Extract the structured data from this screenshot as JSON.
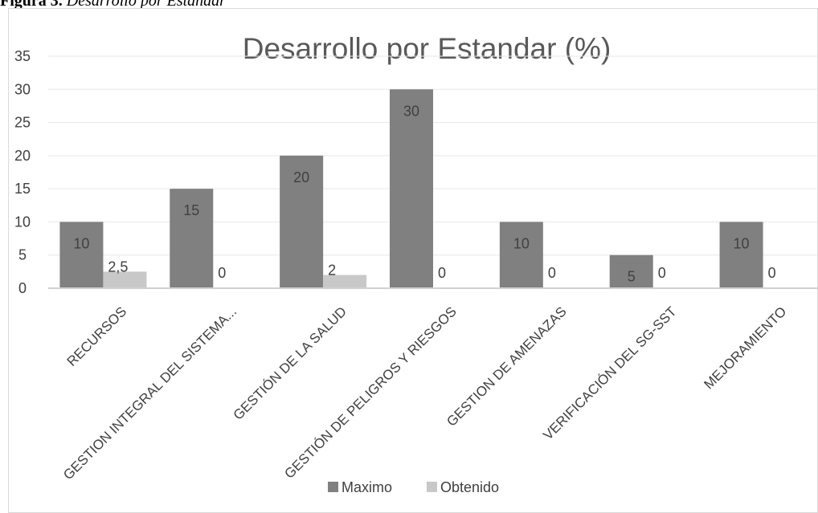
{
  "caption": {
    "label": "Figura 3.",
    "text": "Desarrollo por Estandar"
  },
  "chart_data": {
    "type": "bar",
    "title": "Desarrollo por Estandar (%)",
    "xlabel": "",
    "ylabel": "",
    "ylim": [
      0,
      35
    ],
    "yticks": [
      0,
      5,
      10,
      15,
      20,
      25,
      30,
      35
    ],
    "grid": true,
    "legend_position": "bottom",
    "categories": [
      "RECURSOS",
      "GESTION INTEGRAL DEL SISTEMA...",
      "GESTIÓN DE LA SALUD",
      "GESTIÓN DE PELIGROS Y RIESGOS",
      "GESTION DE AMENAZAS",
      "VERIFICACIÓN DEL SG-SST",
      "MEJORAMIENTO"
    ],
    "series": [
      {
        "name": "Maximo",
        "color": "#808080",
        "values": [
          10,
          15,
          20,
          30,
          10,
          5,
          10
        ],
        "labels": [
          "10",
          "15",
          "20",
          "30",
          "10",
          "5",
          "10"
        ]
      },
      {
        "name": "Obtenido",
        "color": "#c8c8c8",
        "values": [
          2.5,
          0,
          2,
          0,
          0,
          0,
          0
        ],
        "labels": [
          "2,5",
          "0",
          "2",
          "0",
          "0",
          "0",
          "0"
        ]
      }
    ]
  }
}
